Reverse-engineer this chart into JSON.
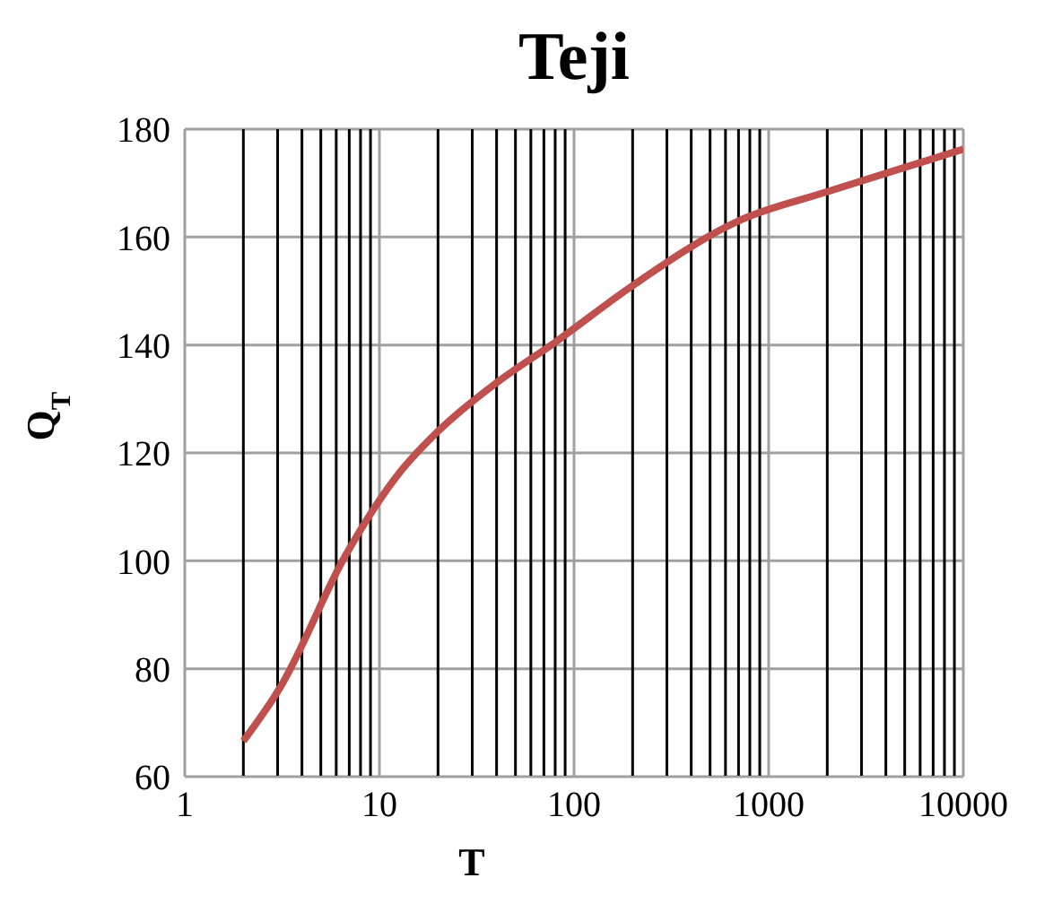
{
  "chart_data": {
    "type": "line",
    "title": "Teji",
    "xlabel": "T",
    "ylabel": "Q$_{T}$",
    "log": "x",
    "x": [
      2,
      3.1,
      6.7,
      12.8,
      20,
      40,
      80,
      200,
      700,
      2000,
      10000
    ],
    "series": [
      {
        "color": "#c0504d",
        "values": [
          66.6,
          76.6,
          101,
          116.5,
          124,
          133,
          140.5,
          151,
          163,
          168.4,
          176.3
        ]
      }
    ],
    "xlim": [
      1,
      10000
    ],
    "xticks": [
      1,
      {
        "value": 2,
        "label": null
      },
      {
        "value": 3,
        "label": null
      },
      {
        "value": 4,
        "label": null
      },
      {
        "value": 5,
        "label": null
      },
      {
        "value": 6,
        "label": null
      },
      {
        "value": 7,
        "label": null
      },
      {
        "value": 8,
        "label": null
      },
      {
        "value": 9,
        "label": null
      },
      10,
      {
        "value": 20,
        "label": null
      },
      {
        "value": 30,
        "label": null
      },
      {
        "value": 40,
        "label": null
      },
      {
        "value": 50,
        "label": null
      },
      {
        "value": 60,
        "label": null
      },
      {
        "value": 70,
        "label": null
      },
      {
        "value": 80,
        "label": null
      },
      {
        "value": 90,
        "label": null
      },
      100,
      {
        "value": 200,
        "label": null
      },
      {
        "value": 300,
        "label": null
      },
      {
        "value": 400,
        "label": null
      },
      {
        "value": 500,
        "label": null
      },
      {
        "value": 600,
        "label": null
      },
      {
        "value": 700,
        "label": null
      },
      {
        "value": 800,
        "label": null
      },
      {
        "value": 900,
        "label": null
      },
      1000,
      {
        "value": 2000,
        "label": null
      },
      {
        "value": 3000,
        "label": null
      },
      {
        "value": 4000,
        "label": null
      },
      {
        "value": 5000,
        "label": null
      },
      {
        "value": 6000,
        "label": null
      },
      {
        "value": 7000,
        "label": null
      },
      {
        "value": 8000,
        "label": null
      },
      {
        "value": 9000,
        "label": null
      },
      10000
    ],
    "ylim": [
      60,
      180
    ],
    "yticks": [
      60,
      80,
      100,
      120,
      140,
      160,
      180
    ],
    "grid": true
  }
}
